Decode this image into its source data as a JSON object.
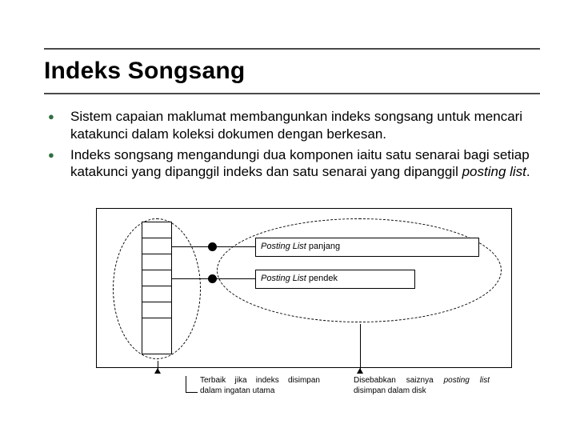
{
  "title": "Indeks Songsang",
  "bullets": [
    {
      "text": "Sistem capaian maklumat membangunkan indeks songsang untuk mencari katakunci dalam koleksi dokumen dengan berkesan."
    },
    {
      "text_pre": "Indeks songsang mengandungi dua komponen iaitu satu senarai bagi setiap katakunci yang dipanggil indeks dan satu senarai yang dipanggil ",
      "text_italic": "posting list",
      "text_post": "."
    }
  ],
  "diagram": {
    "posting_long_prefix_italic": "Posting List",
    "posting_long_suffix": " panjang",
    "posting_short_prefix_italic": "Posting List",
    "posting_short_suffix": " pendek",
    "annot_left": "Terbaik jika indeks disimpan dalam ingatan utama",
    "annot_right_pre": "Disebabkan saiznya ",
    "annot_right_italic": "posting list",
    "annot_right_post": " disimpan dalam disk",
    "colors": {
      "bullet_dot": "#2f6f3f",
      "rule": "#4a4a4a",
      "line": "#000000",
      "bg": "#ffffff"
    },
    "index_cell_count": 7
  }
}
